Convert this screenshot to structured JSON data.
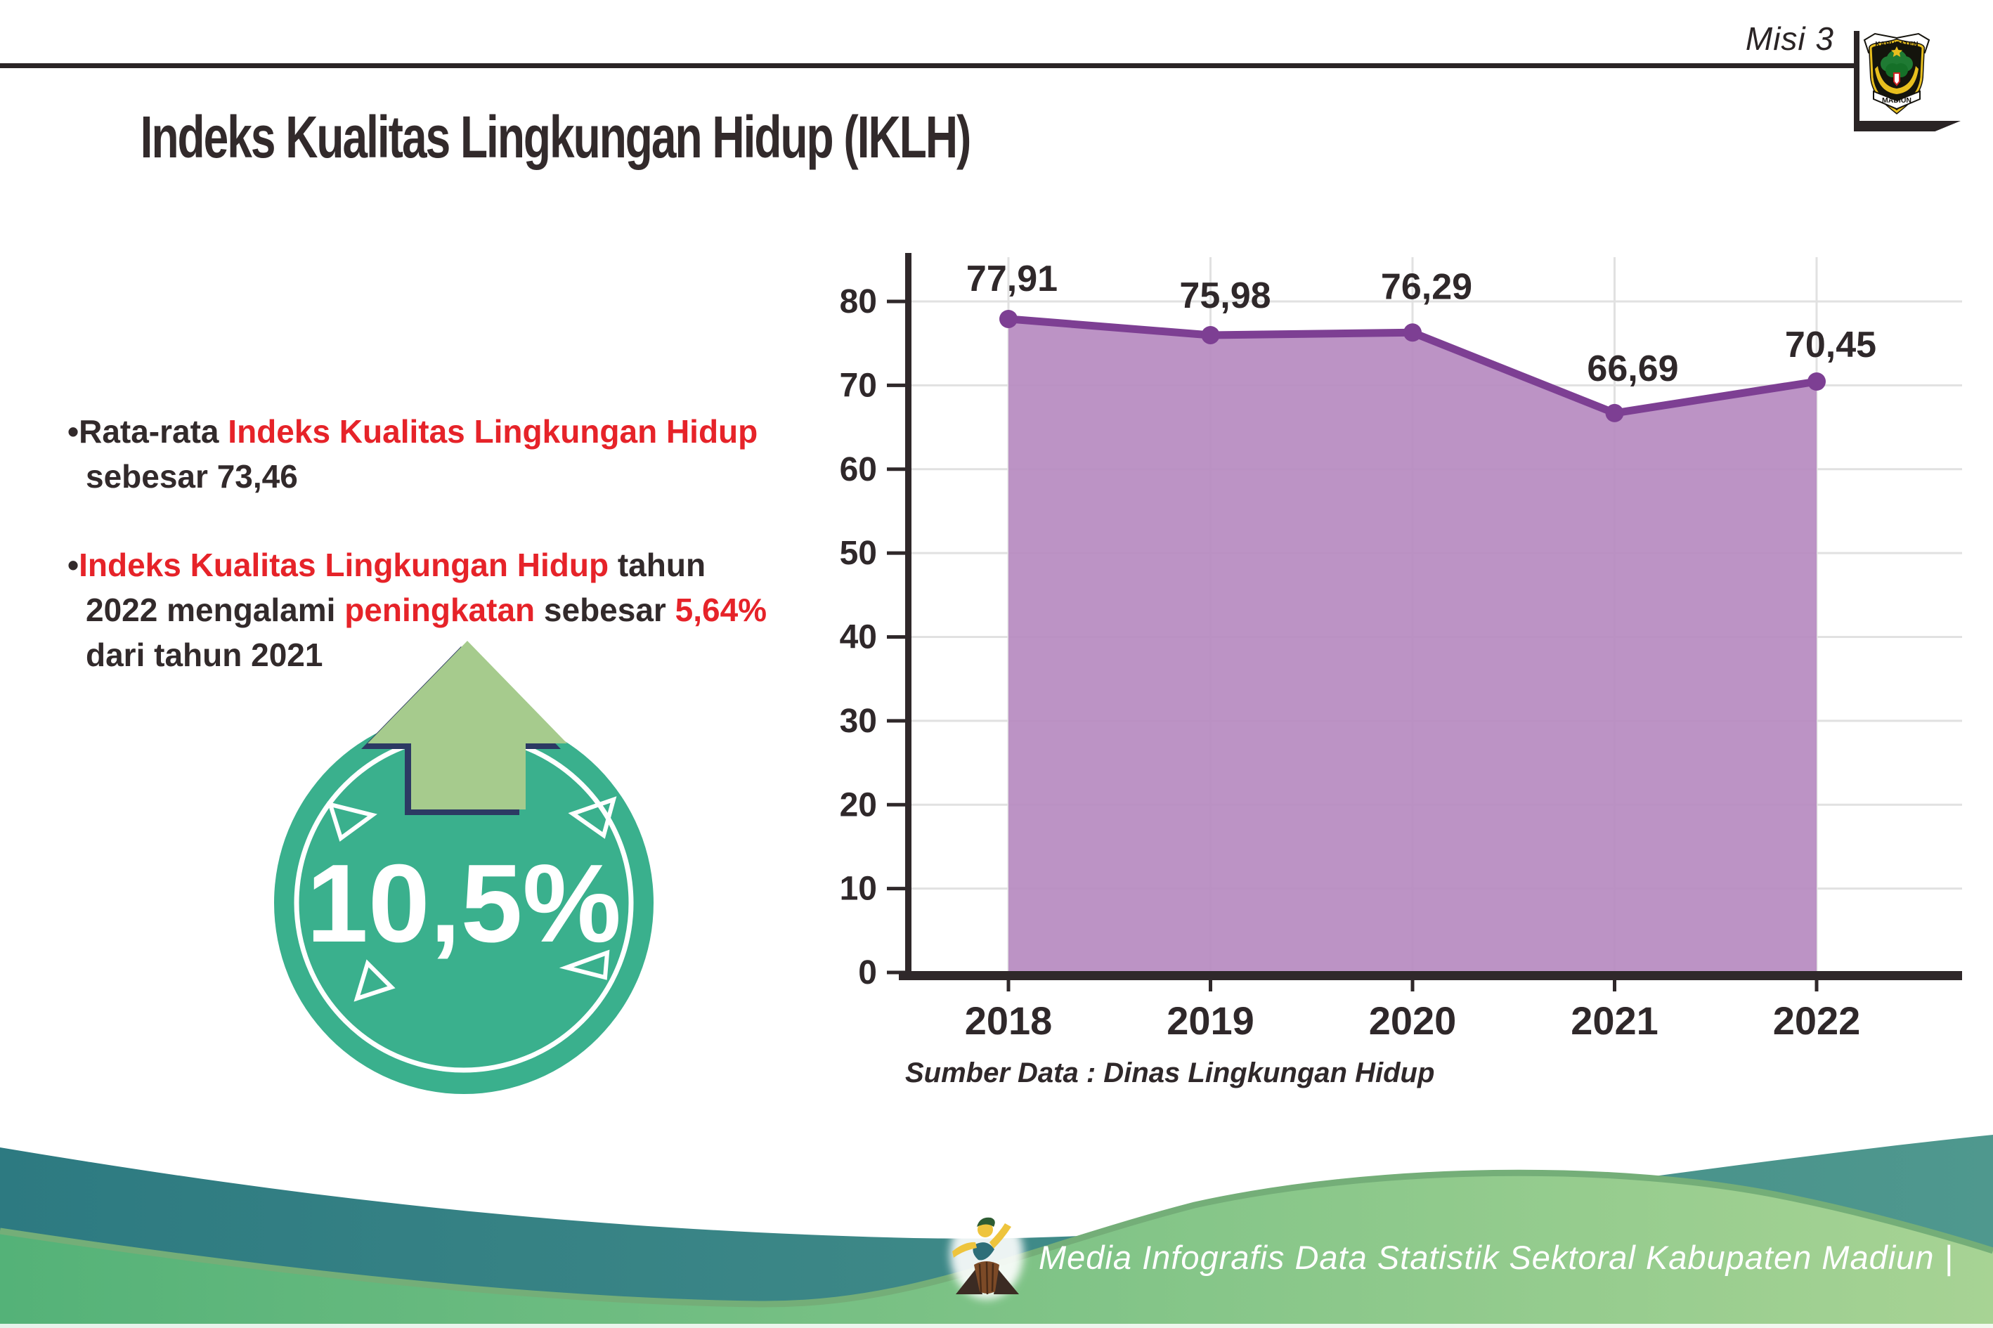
{
  "header": {
    "misi_label": "Misi 3"
  },
  "logo": {
    "top_text": "KABUPATEN",
    "bottom_text": "MADIUN"
  },
  "title": "Indeks Kualitas Lingkungan Hidup (IKLH)",
  "bullets": {
    "b1": [
      {
        "text": "•Rata-rata ",
        "color": "dark"
      },
      {
        "text": "Indeks Kualitas Lingkungan Hidup",
        "color": "red"
      },
      {
        "text": " sebesar 73,46",
        "color": "dark"
      }
    ],
    "b2": [
      {
        "text": "•",
        "color": "dark"
      },
      {
        "text": "Indeks Kualitas Lingkungan Hidup",
        "color": "red"
      },
      {
        "text": " tahun 2022 mengalami ",
        "color": "dark"
      },
      {
        "text": "peningkatan",
        "color": "red"
      },
      {
        "text": " sebesar ",
        "color": "dark"
      },
      {
        "text": "5,64%",
        "color": "red"
      },
      {
        "text": " dari tahun 2021",
        "color": "dark"
      }
    ]
  },
  "badge": {
    "value": "10,5%"
  },
  "chart_data": {
    "type": "area",
    "categories": [
      "2018",
      "2019",
      "2020",
      "2021",
      "2022"
    ],
    "values": [
      77.91,
      75.98,
      76.29,
      66.69,
      70.45
    ],
    "point_labels": [
      "77,91",
      "75,98",
      "76,29",
      "66,69",
      "70,45"
    ],
    "ylim": [
      0,
      80
    ],
    "yticks": [
      0,
      10,
      20,
      30,
      40,
      50,
      60,
      70,
      80
    ],
    "grid": true,
    "legend": false,
    "source_note": "Sumber Data : Dinas Lingkungan Hidup",
    "colors": {
      "area_fill": "#b78bc1",
      "line": "#7d3f93",
      "marker": "#7d3f93",
      "axis": "#2f282a",
      "grid": "#e1e1e1",
      "label": "#2f282a"
    }
  },
  "footer": {
    "credit_text": "Media Infografis Data Statistik Sektoral Kabupaten Madiun |"
  },
  "theme": {
    "accent_red": "#e62329",
    "text_dark": "#322a2b",
    "badge_teal": "#3ab08d",
    "arrow_green": "#a6cb8d",
    "arrow_outline": "#2c3a63",
    "footer_teal": "#35818a",
    "footer_green": "#58b47b"
  }
}
